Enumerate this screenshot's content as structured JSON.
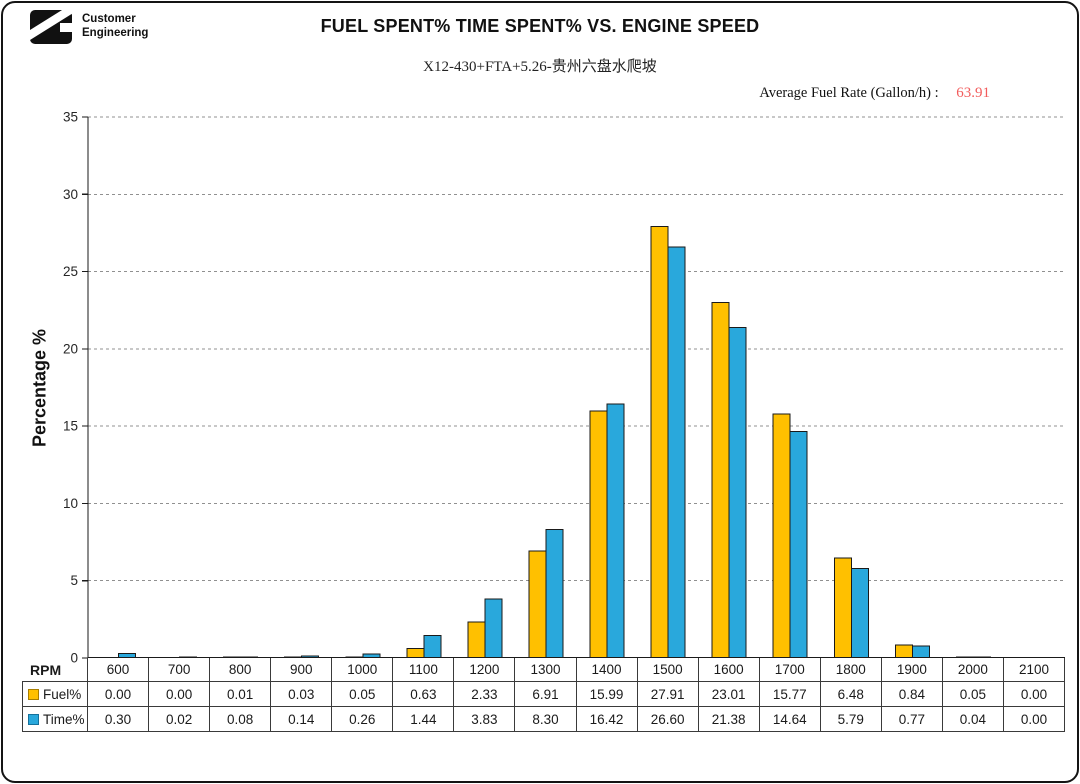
{
  "header": {
    "logo_name": "Cummins",
    "logo_text_line1": "Customer",
    "logo_text_line2": "Engineering",
    "title": "FUEL SPENT% TIME SPENT% VS. ENGINE SPEED",
    "subtitle": "X12-430+FTA+5.26-贵州六盘水爬坡",
    "average_fuel_rate_label": "Average Fuel Rate (Gallon/h) :",
    "average_fuel_rate_value": "63.91",
    "average_fuel_rate_value_color": "#f25c5c"
  },
  "chart_data": {
    "type": "bar",
    "title": "FUEL SPENT% TIME SPENT% VS. ENGINE SPEED",
    "subtitle": "X12-430+FTA+5.26-贵州六盘水爬坡",
    "xlabel": "RPM",
    "ylabel": "Percentage %",
    "ylim": [
      0,
      35
    ],
    "ytick_step": 5,
    "grid": "horizontal-dashed",
    "legend_position": "table-left-column",
    "categories": [
      "600",
      "700",
      "800",
      "900",
      "1000",
      "1100",
      "1200",
      "1300",
      "1400",
      "1500",
      "1600",
      "1700",
      "1800",
      "1900",
      "2000",
      "2100"
    ],
    "series": [
      {
        "name": "Fuel%",
        "color": "#FFC000",
        "swatch_border": "#a87e00",
        "values": [
          0.0,
          0.0,
          0.01,
          0.03,
          0.05,
          0.63,
          2.33,
          6.91,
          15.99,
          27.91,
          23.01,
          15.77,
          6.48,
          0.84,
          0.05,
          0.0
        ]
      },
      {
        "name": "Time%",
        "color": "#29A8DC",
        "swatch_border": "#15719c",
        "values": [
          0.3,
          0.02,
          0.08,
          0.14,
          0.26,
          1.44,
          3.83,
          8.3,
          16.42,
          26.6,
          21.38,
          14.64,
          5.79,
          0.77,
          0.04,
          0.0
        ]
      }
    ],
    "annotation": {
      "label": "Average Fuel Rate (Gallon/h) :",
      "value": 63.91
    }
  },
  "style": {
    "bar_outline": "#1a1a1a",
    "gridline_color": "#909090",
    "axis_color": "#1a1a1a",
    "table_border": "#3a3a3a"
  }
}
